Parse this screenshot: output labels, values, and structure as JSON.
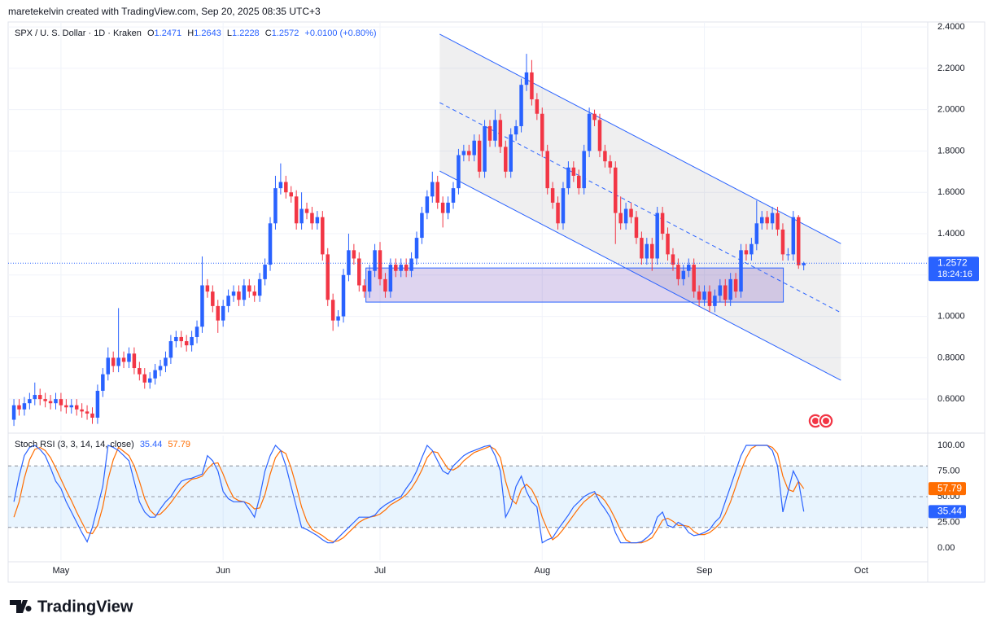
{
  "header": {
    "credit": "maretekelvin created with TradingView.com, Sep 20, 2025 08:35 UTC+3",
    "brand": "TradingView"
  },
  "chart_data": [
    {
      "type": "candlestick",
      "title": "SPX / U. S. Dollar · 1D · Kraken",
      "ohlc_labels": [
        "O",
        "H",
        "L",
        "C"
      ],
      "change": "+0.0100 (+0.80%)",
      "countdown": "18:24:16",
      "up_color": "#2962ff",
      "down_color": "#f23645",
      "open": [
        0.5,
        0.57,
        0.55,
        0.58,
        0.6,
        0.62,
        0.6,
        0.59,
        0.58,
        0.6,
        0.57,
        0.56,
        0.57,
        0.55,
        0.54,
        0.53,
        0.51,
        0.64,
        0.72,
        0.8,
        0.76,
        0.8,
        0.78,
        0.82,
        0.75,
        0.72,
        0.68,
        0.7,
        0.74,
        0.76,
        0.8,
        0.88,
        0.9,
        0.88,
        0.86,
        0.9,
        0.95,
        1.15,
        1.12,
        1.05,
        0.98,
        1.05,
        1.1,
        1.12,
        1.08,
        1.15,
        1.12,
        1.1,
        1.18,
        1.25,
        1.45,
        1.62,
        1.65,
        1.6,
        1.58,
        1.45,
        1.52,
        1.5,
        1.45,
        1.48,
        1.3,
        1.08,
        0.98,
        1.0,
        1.2,
        1.32,
        1.28,
        1.15,
        1.12,
        1.22,
        1.32,
        1.18,
        1.12,
        1.25,
        1.22,
        1.25,
        1.22,
        1.28,
        1.38,
        1.5,
        1.58,
        1.65,
        1.55,
        1.5,
        1.55,
        1.62,
        1.78,
        1.8,
        1.78,
        1.85,
        1.7,
        1.92,
        1.85,
        1.95,
        1.82,
        1.7,
        1.88,
        1.92,
        2.12,
        2.18,
        2.05,
        1.98,
        1.8,
        1.62,
        1.55,
        1.45,
        1.62,
        1.72,
        1.68,
        1.62,
        1.8,
        1.98,
        1.95,
        1.8,
        1.75,
        1.72,
        1.5,
        1.45,
        1.52,
        1.48,
        1.38,
        1.28,
        1.35,
        1.28,
        1.5,
        1.4,
        1.3,
        1.25,
        1.18,
        1.22,
        1.25,
        1.12,
        1.08,
        1.12,
        1.05,
        1.1,
        1.15,
        1.08,
        1.18,
        1.12,
        1.32,
        1.3,
        1.35,
        1.45,
        1.48,
        1.45,
        1.5,
        1.42,
        1.3,
        1.3,
        1.48,
        1.2471
      ],
      "high": [
        0.6,
        0.6,
        0.61,
        0.63,
        0.68,
        0.65,
        0.63,
        0.62,
        0.63,
        0.63,
        0.6,
        0.6,
        0.6,
        0.58,
        0.57,
        0.56,
        0.67,
        0.75,
        0.85,
        0.83,
        1.04,
        0.83,
        0.85,
        0.85,
        0.78,
        0.75,
        0.73,
        0.77,
        0.79,
        0.83,
        0.91,
        0.93,
        0.93,
        0.91,
        0.93,
        0.98,
        1.29,
        1.18,
        1.15,
        1.08,
        1.08,
        1.13,
        1.15,
        1.15,
        1.18,
        1.18,
        1.15,
        1.21,
        1.28,
        1.48,
        1.68,
        1.74,
        1.68,
        1.63,
        1.61,
        1.6,
        1.55,
        1.53,
        1.51,
        1.51,
        1.33,
        1.11,
        1.03,
        1.23,
        1.4,
        1.35,
        1.31,
        1.18,
        1.25,
        1.35,
        1.36,
        1.21,
        1.28,
        1.28,
        1.28,
        1.28,
        1.31,
        1.41,
        1.53,
        1.61,
        1.7,
        1.68,
        1.58,
        1.58,
        1.65,
        1.81,
        1.83,
        1.83,
        1.88,
        1.88,
        1.95,
        1.95,
        2.0,
        1.98,
        1.85,
        1.91,
        1.95,
        2.15,
        2.27,
        2.24,
        2.08,
        2.01,
        1.83,
        1.65,
        1.58,
        1.65,
        1.75,
        1.75,
        1.71,
        1.83,
        2.01,
        2.0,
        1.98,
        1.83,
        1.78,
        1.75,
        1.58,
        1.55,
        1.55,
        1.51,
        1.41,
        1.38,
        1.38,
        1.53,
        1.53,
        1.43,
        1.33,
        1.28,
        1.25,
        1.28,
        1.28,
        1.15,
        1.15,
        1.15,
        1.13,
        1.18,
        1.18,
        1.21,
        1.21,
        1.35,
        1.35,
        1.38,
        1.56,
        1.51,
        1.51,
        1.53,
        1.53,
        1.45,
        1.33,
        1.51,
        1.49,
        1.2643
      ],
      "low": [
        0.47,
        0.52,
        0.52,
        0.55,
        0.57,
        0.57,
        0.56,
        0.55,
        0.55,
        0.54,
        0.53,
        0.53,
        0.52,
        0.51,
        0.5,
        0.48,
        0.48,
        0.61,
        0.69,
        0.73,
        0.73,
        0.75,
        0.75,
        0.72,
        0.69,
        0.65,
        0.65,
        0.67,
        0.71,
        0.73,
        0.77,
        0.85,
        0.85,
        0.83,
        0.83,
        0.87,
        0.92,
        1.09,
        1.02,
        0.92,
        0.95,
        1.02,
        1.07,
        1.05,
        1.05,
        1.09,
        1.07,
        1.07,
        1.15,
        1.22,
        1.42,
        1.59,
        1.57,
        1.55,
        1.42,
        1.42,
        1.47,
        1.42,
        1.42,
        1.27,
        1.05,
        0.93,
        0.95,
        0.97,
        1.17,
        1.25,
        1.12,
        1.09,
        1.09,
        1.19,
        1.15,
        1.09,
        1.09,
        1.19,
        1.19,
        1.19,
        1.19,
        1.25,
        1.35,
        1.47,
        1.55,
        1.52,
        1.43,
        1.47,
        1.52,
        1.59,
        1.75,
        1.75,
        1.75,
        1.67,
        1.67,
        1.82,
        1.82,
        1.79,
        1.67,
        1.67,
        1.85,
        1.89,
        2.09,
        2.02,
        1.95,
        1.77,
        1.59,
        1.52,
        1.42,
        1.42,
        1.59,
        1.65,
        1.59,
        1.59,
        1.77,
        1.92,
        1.77,
        1.72,
        1.69,
        1.35,
        1.42,
        1.42,
        1.45,
        1.35,
        1.25,
        1.25,
        1.22,
        1.25,
        1.37,
        1.27,
        1.22,
        1.15,
        1.15,
        1.19,
        1.09,
        1.05,
        1.05,
        1.02,
        1.02,
        1.07,
        1.05,
        1.05,
        1.09,
        1.09,
        1.27,
        1.27,
        1.32,
        1.42,
        1.42,
        1.42,
        1.39,
        1.27,
        1.27,
        1.27,
        1.23,
        1.2228
      ],
      "close": [
        0.57,
        0.55,
        0.58,
        0.6,
        0.62,
        0.6,
        0.59,
        0.58,
        0.6,
        0.57,
        0.56,
        0.57,
        0.55,
        0.54,
        0.53,
        0.51,
        0.64,
        0.72,
        0.8,
        0.76,
        0.8,
        0.78,
        0.82,
        0.75,
        0.72,
        0.68,
        0.7,
        0.74,
        0.76,
        0.8,
        0.88,
        0.9,
        0.88,
        0.86,
        0.9,
        0.95,
        1.15,
        1.12,
        1.05,
        0.98,
        1.05,
        1.1,
        1.12,
        1.08,
        1.15,
        1.12,
        1.1,
        1.18,
        1.25,
        1.45,
        1.62,
        1.65,
        1.6,
        1.58,
        1.45,
        1.52,
        1.5,
        1.45,
        1.48,
        1.3,
        1.08,
        0.98,
        1.0,
        1.2,
        1.32,
        1.28,
        1.15,
        1.12,
        1.22,
        1.32,
        1.18,
        1.12,
        1.25,
        1.22,
        1.25,
        1.22,
        1.28,
        1.38,
        1.5,
        1.58,
        1.65,
        1.55,
        1.5,
        1.55,
        1.62,
        1.78,
        1.8,
        1.78,
        1.85,
        1.7,
        1.92,
        1.85,
        1.95,
        1.82,
        1.7,
        1.88,
        1.92,
        2.12,
        2.18,
        2.05,
        1.98,
        1.8,
        1.62,
        1.55,
        1.45,
        1.62,
        1.72,
        1.68,
        1.62,
        1.8,
        1.98,
        1.95,
        1.8,
        1.75,
        1.72,
        1.5,
        1.45,
        1.52,
        1.48,
        1.38,
        1.28,
        1.35,
        1.28,
        1.5,
        1.4,
        1.3,
        1.25,
        1.18,
        1.22,
        1.25,
        1.12,
        1.08,
        1.12,
        1.05,
        1.1,
        1.15,
        1.08,
        1.18,
        1.12,
        1.32,
        1.3,
        1.35,
        1.45,
        1.48,
        1.45,
        1.5,
        1.42,
        1.3,
        1.3,
        1.48,
        1.2471,
        1.2572
      ],
      "xlim": [
        -1.1,
        174.7
      ],
      "ylim": [
        0.443,
        2.424
      ],
      "yticks": [
        {
          "value": 2.4,
          "label": "2.4000"
        },
        {
          "value": 2.2,
          "label": "2.2000"
        },
        {
          "value": 2.0,
          "label": "2.0000"
        },
        {
          "value": 1.8,
          "label": "1.8000"
        },
        {
          "value": 1.6,
          "label": "1.6000"
        },
        {
          "value": 1.4,
          "label": "1.4000"
        },
        {
          "value": 1.2,
          "label": "1.2000"
        },
        {
          "value": 1.0,
          "label": "1.0000"
        },
        {
          "value": 0.8,
          "label": "0.8000"
        },
        {
          "value": 0.6,
          "label": "0.6000"
        }
      ],
      "grid": true,
      "drawings": {
        "color": "#2962ff",
        "channel_upper": {
          "x": [
            81.4,
            158.1
          ],
          "y": [
            2.365,
            1.352
          ]
        },
        "channel_middle": {
          "x": [
            81.4,
            158.1
          ],
          "y": [
            2.034,
            1.018
          ]
        },
        "channel_lower": {
          "x": [
            81.4,
            158.1
          ],
          "y": [
            1.703,
            0.691
          ]
        },
        "zone": {
          "x": [
            67.3,
            147.1
          ],
          "y": [
            1.234,
            1.069
          ]
        }
      }
    },
    {
      "type": "line",
      "title": "Stoch RSI (3, 3, 14, 14, close)",
      "series": [
        {
          "color": "#2962ff",
          "values": [
            45,
            70,
            90,
            98,
            100,
            96,
            90,
            78,
            65,
            58,
            45,
            35,
            25,
            15,
            6,
            20,
            40,
            60,
            100,
            98,
            95,
            90,
            85,
            65,
            45,
            35,
            30,
            30,
            38,
            45,
            50,
            58,
            65,
            67,
            68,
            70,
            72,
            90,
            85,
            75,
            55,
            48,
            45,
            45,
            45,
            38,
            30,
            50,
            75,
            90,
            100,
            95,
            80,
            60,
            40,
            20,
            18,
            15,
            12,
            8,
            5,
            5,
            10,
            15,
            20,
            25,
            30,
            30,
            30,
            32,
            38,
            42,
            45,
            48,
            50,
            58,
            65,
            75,
            88,
            100,
            95,
            85,
            75,
            72,
            80,
            85,
            90,
            93,
            95,
            97,
            99,
            100,
            90,
            75,
            30,
            40,
            60,
            70,
            55,
            45,
            40,
            5,
            8,
            10,
            18,
            25,
            32,
            40,
            45,
            50,
            53,
            55,
            45,
            38,
            30,
            15,
            5,
            5,
            5,
            5,
            6,
            10,
            15,
            30,
            35,
            22,
            20,
            25,
            22,
            15,
            12,
            13,
            15,
            18,
            25,
            30,
            45,
            60,
            75,
            90,
            100,
            100,
            100,
            100,
            100,
            95,
            80,
            35,
            55,
            75,
            65,
            35.44
          ]
        },
        {
          "color": "#ff6d00",
          "values": [
            30,
            45,
            68,
            86,
            96,
            98,
            95,
            88,
            78,
            67,
            56,
            46,
            35,
            25,
            15,
            14,
            22,
            40,
            67,
            86,
            98,
            94,
            90,
            80,
            65,
            48,
            37,
            32,
            33,
            38,
            44,
            51,
            58,
            63,
            67,
            68,
            70,
            77,
            82,
            83,
            72,
            59,
            49,
            46,
            45,
            43,
            38,
            39,
            52,
            72,
            88,
            95,
            92,
            78,
            60,
            40,
            26,
            18,
            15,
            12,
            8,
            6,
            7,
            10,
            15,
            20,
            25,
            28,
            30,
            31,
            33,
            37,
            42,
            45,
            48,
            52,
            58,
            66,
            76,
            88,
            94,
            93,
            85,
            77,
            76,
            79,
            85,
            89,
            93,
            95,
            97,
            99,
            96,
            88,
            65,
            48,
            43,
            57,
            62,
            57,
            47,
            30,
            18,
            8,
            12,
            18,
            25,
            32,
            39,
            45,
            49,
            53,
            51,
            46,
            38,
            28,
            17,
            8,
            5,
            5,
            5,
            7,
            10,
            18,
            27,
            29,
            26,
            22,
            22,
            21,
            16,
            13,
            13,
            15,
            19,
            24,
            33,
            45,
            60,
            75,
            88,
            97,
            100,
            100,
            100,
            98,
            92,
            70,
            57,
            55,
            65,
            57.79
          ]
        }
      ],
      "levels": [
        80,
        50,
        20
      ],
      "xlim": [
        -1.1,
        174.7
      ],
      "ylim": [
        -11.9,
        109.5
      ],
      "yticks": [
        {
          "value": 100,
          "label": "100.00"
        },
        {
          "value": 75,
          "label": "75.00"
        },
        {
          "value": 50,
          "label": "50.00"
        },
        {
          "value": 25,
          "label": "25.00"
        },
        {
          "value": 0,
          "label": "0.00"
        }
      ],
      "xticks": [
        {
          "value": 9,
          "label": "May"
        },
        {
          "value": 40,
          "label": "Jun"
        },
        {
          "value": 70,
          "label": "Jul"
        },
        {
          "value": 101,
          "label": "Aug"
        },
        {
          "value": 132,
          "label": "Sep"
        },
        {
          "value": 162,
          "label": "Oct"
        }
      ]
    }
  ]
}
